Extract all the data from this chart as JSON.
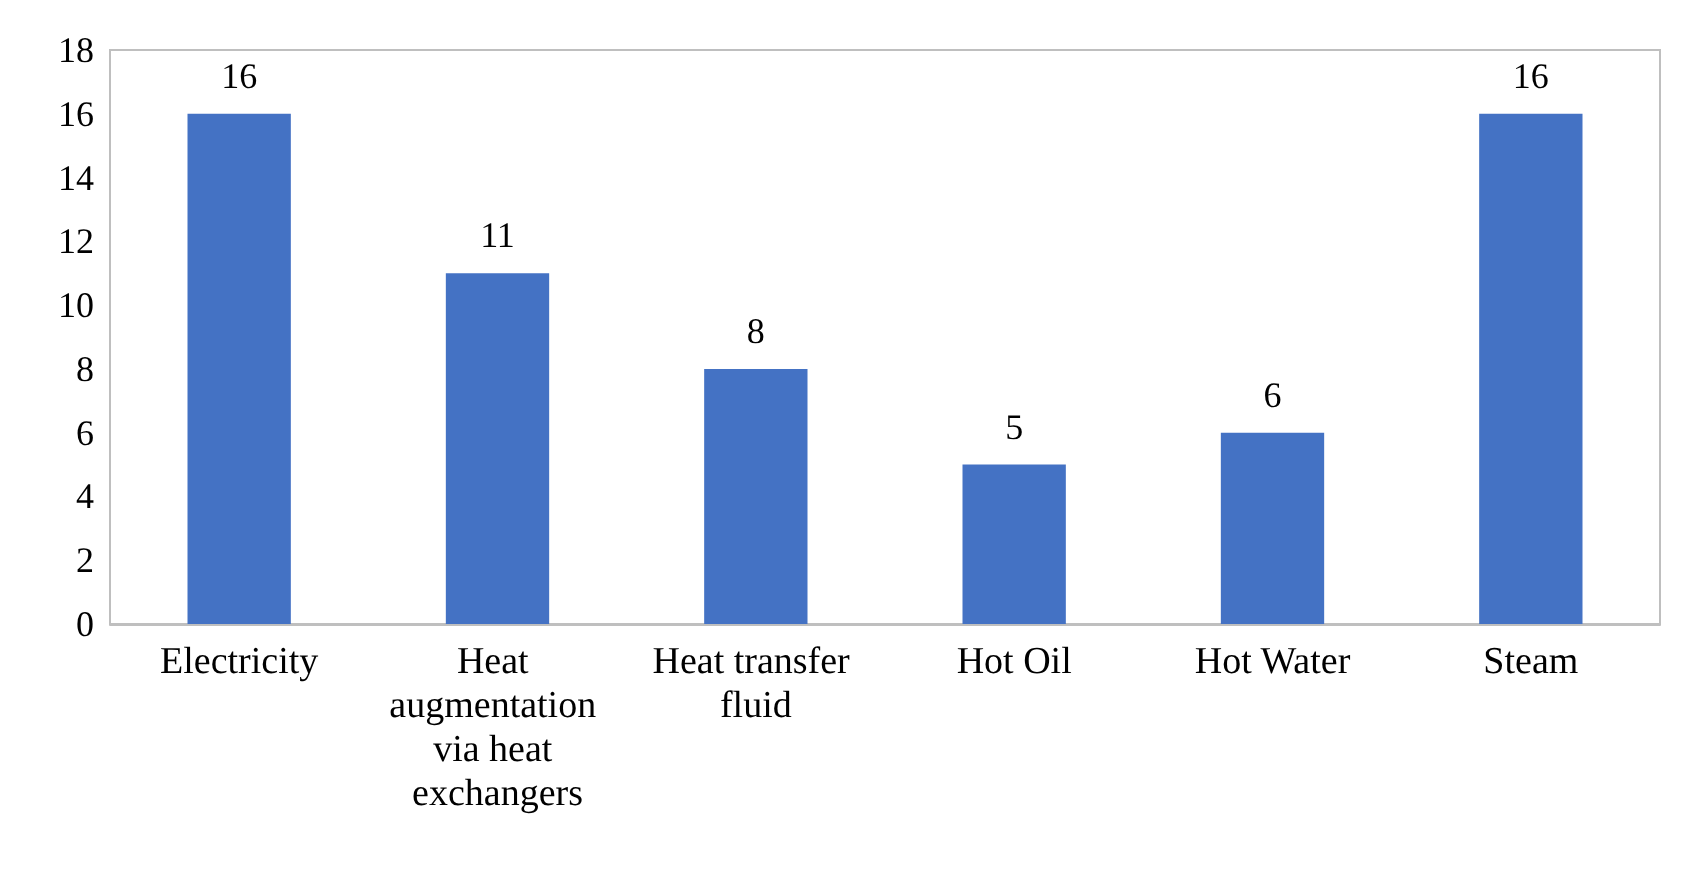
{
  "chart_data": {
    "type": "bar",
    "categories": [
      "Electricity",
      "Heat augmentation via heat exchangers",
      "Heat transfer fluid",
      "Hot Oil",
      "Hot Water",
      "Steam"
    ],
    "values": [
      16,
      11,
      8,
      5,
      6,
      16
    ],
    "color": "#4472c4",
    "ylim": [
      0,
      18
    ],
    "yticks": [
      0,
      2,
      4,
      6,
      8,
      10,
      12,
      14,
      16,
      18
    ],
    "grid": false,
    "data_labels": true
  }
}
